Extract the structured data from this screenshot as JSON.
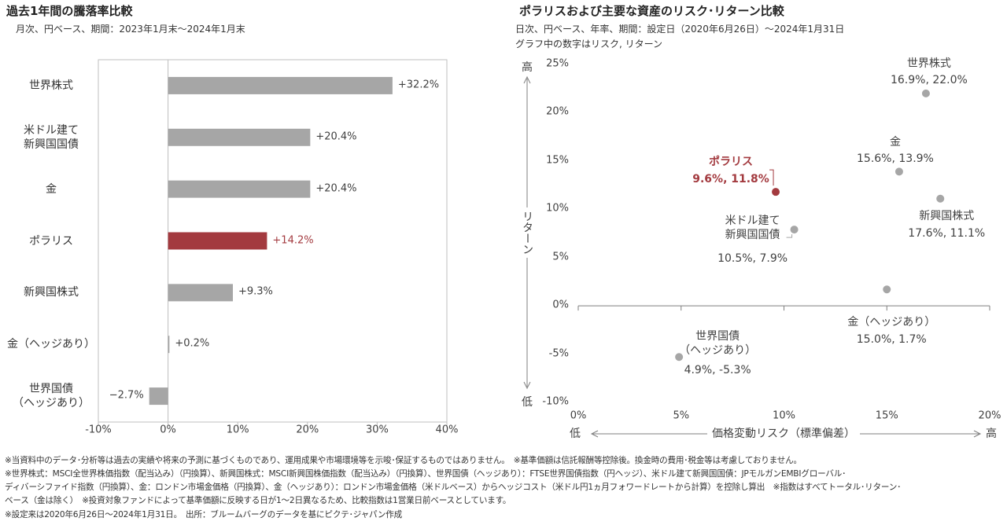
{
  "chart_data": [
    {
      "type": "hbar",
      "title": "過去1年間の騰落率比較",
      "subtitle": "月次、円ベース、期間：2023年1月末～2024年1月末",
      "categories": [
        "世界株式",
        "米ドル建て\n新興国国債",
        "金",
        "ポラリス",
        "新興国株式",
        "金（ヘッジあり）",
        "世界国債\n（ヘッジあり）"
      ],
      "values": [
        32.2,
        20.4,
        20.4,
        14.2,
        9.3,
        0.2,
        -2.7
      ],
      "value_labels": [
        "+32.2%",
        "+20.4%",
        "+20.4%",
        "+14.2%",
        "+9.3%",
        "+0.2%",
        "−2.7%"
      ],
      "colors": [
        "#a6a6a6",
        "#a6a6a6",
        "#a6a6a6",
        "#a33a3f",
        "#a6a6a6",
        "#a6a6a6",
        "#a6a6a6"
      ],
      "label_colors": [
        "#404040",
        "#404040",
        "#404040",
        "#a33a3f",
        "#404040",
        "#404040",
        "#404040"
      ],
      "xlim": [
        -10,
        40
      ],
      "xticks": [
        {
          "value": -10,
          "label": "-10%"
        },
        {
          "value": 0,
          "label": "0%"
        },
        {
          "value": 10,
          "label": "10%"
        },
        {
          "value": 20,
          "label": "20%"
        },
        {
          "value": 30,
          "label": "30%"
        },
        {
          "value": 40,
          "label": "40%"
        }
      ]
    },
    {
      "type": "scatter",
      "title": "ポラリスおよび主要な資産のリスク･リターン比較",
      "subtitle": "日次、円ベース、年率、期間：設定日（2020年6月26日）～2024年1月31日",
      "note": "グラフ中の数字はリスク, リターン",
      "xlabel": "価格変動リスク（標準偏差）",
      "ylabel": "リターン",
      "x_low": "低",
      "x_high": "高",
      "y_low": "低",
      "y_high": "高",
      "points": [
        {
          "name": "世界株式",
          "x": 16.9,
          "y": 22.0,
          "label": "16.9%, 22.0%",
          "color": "#a6a6a6"
        },
        {
          "name": "金",
          "x": 15.6,
          "y": 13.9,
          "label": "15.6%, 13.9%",
          "color": "#a6a6a6"
        },
        {
          "name": "ポラリス",
          "x": 9.6,
          "y": 11.8,
          "label": "9.6%, 11.8%",
          "color": "#a33a3f"
        },
        {
          "name": "新興国株式",
          "x": 17.6,
          "y": 11.1,
          "label": "17.6%, 11.1%",
          "color": "#a6a6a6"
        },
        {
          "name": "米ドル建て\n新興国国債",
          "x": 10.5,
          "y": 7.9,
          "label": "10.5%, 7.9%",
          "color": "#a6a6a6"
        },
        {
          "name": "金（ヘッジあり）",
          "x": 15.0,
          "y": 1.7,
          "label": "15.0%, 1.7%",
          "color": "#a6a6a6"
        },
        {
          "name": "世界国債\n（ヘッジあり）",
          "x": 4.9,
          "y": -5.3,
          "label": "4.9%, -5.3%",
          "color": "#a6a6a6"
        }
      ],
      "xlim": [
        0,
        20
      ],
      "xticks": [
        {
          "value": 0,
          "label": "0%"
        },
        {
          "value": 5,
          "label": "5%"
        },
        {
          "value": 10,
          "label": "10%"
        },
        {
          "value": 15,
          "label": "15%"
        },
        {
          "value": 20,
          "label": "20%"
        }
      ],
      "ylim": [
        -10,
        25
      ],
      "yticks": [
        {
          "value": -10,
          "label": "-10%"
        },
        {
          "value": -5,
          "label": "-5%"
        },
        {
          "value": 0,
          "label": "0%"
        },
        {
          "value": 5,
          "label": "5%"
        },
        {
          "value": 10,
          "label": "10%"
        },
        {
          "value": 15,
          "label": "15%"
        },
        {
          "value": 20,
          "label": "20%"
        },
        {
          "value": 25,
          "label": "25%"
        }
      ]
    }
  ],
  "footnotes": [
    "※当資料中のデータ･分析等は過去の実績や将来の予測に基づくものであり、運用成果や市場環境等を示唆･保証するものではありません。　※基準価額は信託報酬等控除後。換金時の費用･税金等は考慮しておりません。",
    "※世界株式：MSCI全世界株価指数（配当込み）（円換算）、新興国株式：MSCI新興国株価指数（配当込み）（円換算）、世界国債（ヘッジあり）：FTSE世界国債指数（円ヘッジ）、米ドル建て新興国国債：JPモルガンEMBIグローバル･",
    "ディバーシファイド指数（円換算）、金：ロンドン市場金価格（円換算）、金（ヘッジあり）：ロンドン市場金価格（米ドルベース）からヘッジコスト（米ドル円1ヵ月フォワードレートから計算）を控除し算出　※指数はすべてトータル･リターン･",
    "ベース（金は除く）　※投資対象ファンドによって基準価額に反映する日が1～2日異なるため、比較指数は1営業日前ベースとしています。",
    "※設定来は2020年6月26日～2024年1月31日。　出所：ブルームバーグのデータを基にピクテ･ジャパン作成"
  ]
}
